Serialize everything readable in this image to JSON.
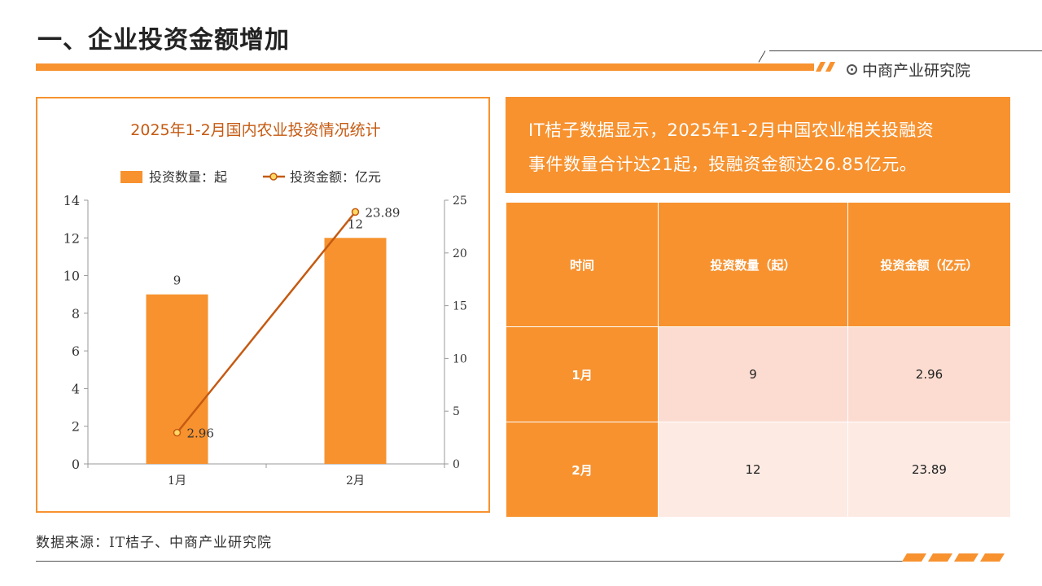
{
  "page": {
    "title": "一、企业投资金额增加",
    "brand": "中商产业研究院",
    "source": "数据来源：IT桔子、中商产业研究院",
    "accent_color": "#f7922f",
    "line_color": "#c55a11"
  },
  "summary": {
    "line1": "IT桔子数据显示，2025年1-2月中国农业相关投融资",
    "line2": "事件数量合计达21起，投融资金额达26.85亿元。"
  },
  "table": {
    "headers": [
      "时间",
      "投资数量（起）",
      "投资金额（亿元）"
    ],
    "rows": [
      [
        "1月",
        "9",
        "2.96"
      ],
      [
        "2月",
        "12",
        "23.89"
      ]
    ]
  },
  "chart_data": {
    "type": "bar",
    "title": "2025年1-2月国内农业投资情况统计",
    "categories": [
      "1月",
      "2月"
    ],
    "series": [
      {
        "name": "投资数量：起",
        "type": "bar",
        "axis": "left",
        "values": [
          9,
          12
        ],
        "labels": [
          "9",
          "12"
        ],
        "color": "#f7922f"
      },
      {
        "name": "投资金额：亿元",
        "type": "line",
        "axis": "right",
        "values": [
          2.96,
          23.89
        ],
        "labels": [
          "2.96",
          "23.89"
        ],
        "color": "#c55a11",
        "marker_color": "#ffd966"
      }
    ],
    "y_left": {
      "min": 0,
      "max": 14,
      "ticks": [
        "0",
        "2",
        "4",
        "6",
        "8",
        "10",
        "12",
        "14"
      ]
    },
    "y_right": {
      "min": 0,
      "max": 25,
      "ticks": [
        "0",
        "5",
        "10",
        "15",
        "20",
        "25"
      ]
    },
    "grid": false,
    "legend": "top"
  }
}
